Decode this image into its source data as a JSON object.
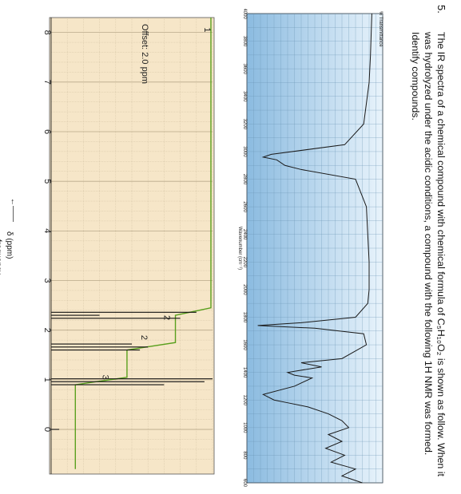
{
  "question": {
    "number": "5.",
    "text": "The IR spectra of a chemical compound with chemical formula of C₅H₁₀O₂ is shown as follow. When it was hydrolyzed under the acidic conditions, a compound with the following 1H NMR was formed. Identify compounds."
  },
  "ir_spectrum": {
    "y_label": "% Transmittance",
    "x_label": "Wavenumber (cm⁻¹)",
    "x_ticks": [
      "4000",
      "3800",
      "3600",
      "3400",
      "3200",
      "3000",
      "2800",
      "2600",
      "2400",
      "2200",
      "2000",
      "1800",
      "1600",
      "1400",
      "1200",
      "1000",
      "800",
      "600"
    ],
    "colors": {
      "background_left": "#7fb3d5",
      "background_right": "#eaf4fb",
      "line": "#1a1a1a"
    }
  },
  "nmr_spectrum": {
    "x_label": "δ (ppm)",
    "direction_label": "frequency",
    "x_ticks": [
      "8",
      "7",
      "6",
      "5",
      "4",
      "3",
      "2",
      "1",
      "0"
    ],
    "offset_note": "Offset: 2.0 ppm",
    "integrations": [
      "1",
      "2",
      "2",
      "3"
    ],
    "colors": {
      "background": "#f6e6c8",
      "grid": "#b9a98a",
      "integral": "#5aa01e",
      "spectrum": "#111111"
    }
  },
  "chart_data": [
    {
      "type": "line",
      "title": "",
      "xlabel": "Wavenumber (cm⁻¹)",
      "ylabel": "% Transmittance",
      "xlim": [
        4000,
        600
      ],
      "series": [
        {
          "x": [
            4000,
            3700,
            3500,
            3200,
            3050,
            2980,
            2960,
            2940,
            2900,
            2870,
            2800,
            2600,
            2400,
            2200,
            2000,
            1900,
            1800,
            1760,
            1740,
            1720,
            1680,
            1600,
            1500,
            1470,
            1440,
            1400,
            1380,
            1360,
            1300,
            1240,
            1200,
            1180,
            1150,
            1100,
            1050,
            1000,
            950,
            900,
            850,
            800,
            750,
            700,
            650,
            600
          ],
          "values": [
            92,
            91,
            90,
            86,
            72,
            18,
            12,
            22,
            28,
            40,
            80,
            88,
            89,
            90,
            90,
            89,
            80,
            40,
            8,
            50,
            86,
            88,
            70,
            40,
            55,
            30,
            35,
            48,
            35,
            12,
            20,
            30,
            45,
            60,
            70,
            75,
            60,
            70,
            58,
            72,
            62,
            80,
            70,
            85
          ]
        }
      ]
    },
    {
      "type": "line",
      "title": "",
      "xlabel": "δ (ppm)",
      "ylabel": "",
      "xlim": [
        8,
        -0.5
      ],
      "series": [
        {
          "x": [
            8.0,
            2.4,
            2.36,
            2.3,
            2.24,
            2.2,
            1.8,
            1.72,
            1.66,
            1.6,
            1.55,
            1.1,
            1.02,
            0.96,
            0.9,
            0.8,
            0.0,
            -0.2
          ],
          "values": [
            0,
            0,
            90,
            30,
            80,
            0,
            0,
            50,
            60,
            55,
            0,
            0,
            100,
            95,
            70,
            0,
            5,
            0
          ]
        }
      ],
      "integrals": [
        {
          "label": "1",
          "x": [
            12.0,
            11.6
          ]
        },
        {
          "label": "2",
          "x": [
            2.4,
            2.2
          ]
        },
        {
          "label": "2",
          "x": [
            1.75,
            1.55
          ]
        },
        {
          "label": "3",
          "x": [
            1.05,
            0.85
          ]
        }
      ]
    }
  ]
}
